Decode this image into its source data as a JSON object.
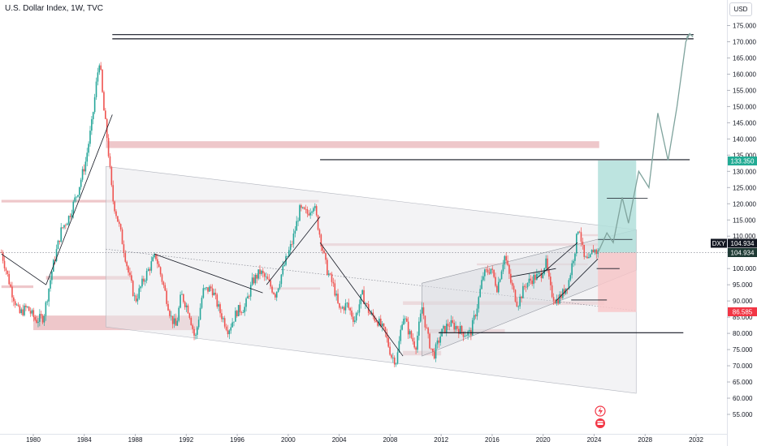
{
  "header": {
    "title": "U.S. Dollar Index, 1W, TVC"
  },
  "price_axis": {
    "currency": "USD",
    "ticks": [
      "175.000",
      "170.000",
      "165.000",
      "160.000",
      "155.000",
      "150.000",
      "145.000",
      "140.000",
      "135.000",
      "130.000",
      "125.000",
      "120.000",
      "115.000",
      "110.000",
      "105.000",
      "100.000",
      "95.000",
      "90.000",
      "85.000",
      "80.000",
      "75.000",
      "70.000",
      "65.000",
      "60.000",
      "55.000"
    ]
  },
  "labels": {
    "target": "133.350",
    "ticker": "DXY",
    "last": "104.934",
    "last2": "104.934",
    "stop": "86.585"
  },
  "colors": {
    "up": "#26a69a",
    "down": "#ef5350",
    "zone": "#e8b4b8",
    "channel": "#cfd1d6",
    "target_fill": "#b2dfdb",
    "stop_fill": "#f8c7c9"
  },
  "chart_data": {
    "type": "line",
    "title": "U.S. Dollar Index, 1W, TVC",
    "xlabel": "",
    "ylabel": "",
    "x_ticks": [
      "1980",
      "1984",
      "1988",
      "1992",
      "1996",
      "2000",
      "2004",
      "2008",
      "2012",
      "2016",
      "2020",
      "2024",
      "2028",
      "2032"
    ],
    "xlim": [
      1977.5,
      2035
    ],
    "ylim": [
      51,
      178
    ],
    "series": [
      {
        "values": [
          [
            1977.5,
            105
          ],
          [
            1978.3,
            93
          ],
          [
            1978.9,
            86
          ],
          [
            1979.5,
            88
          ],
          [
            1980.2,
            84
          ],
          [
            1980.8,
            85
          ],
          [
            1981.5,
            100
          ],
          [
            1982.2,
            112
          ],
          [
            1982.8,
            116
          ],
          [
            1983.5,
            124
          ],
          [
            1984.1,
            133
          ],
          [
            1984.6,
            145
          ],
          [
            1985.0,
            159
          ],
          [
            1985.2,
            164.7
          ],
          [
            1985.5,
            150
          ],
          [
            1985.8,
            140
          ],
          [
            1986.2,
            122
          ],
          [
            1986.8,
            112
          ],
          [
            1987.5,
            98
          ],
          [
            1988.0,
            90
          ],
          [
            1988.6,
            96
          ],
          [
            1989.2,
            101
          ],
          [
            1989.6,
            104
          ],
          [
            1990.2,
            95
          ],
          [
            1990.8,
            85
          ],
          [
            1991.2,
            82
          ],
          [
            1991.6,
            92
          ],
          [
            1992.2,
            87
          ],
          [
            1992.7,
            78
          ],
          [
            1993.3,
            93
          ],
          [
            1994.0,
            94
          ],
          [
            1994.6,
            87
          ],
          [
            1995.3,
            81
          ],
          [
            1996.0,
            87
          ],
          [
            1996.6,
            88
          ],
          [
            1997.2,
            96
          ],
          [
            1997.8,
            99
          ],
          [
            1998.4,
            96
          ],
          [
            1999.0,
            92
          ],
          [
            1999.6,
            100
          ],
          [
            2000.3,
            108
          ],
          [
            2000.9,
            118
          ],
          [
            2001.5,
            117
          ],
          [
            2002.0,
            120
          ],
          [
            2002.5,
            110
          ],
          [
            2003.0,
            100
          ],
          [
            2003.6,
            94
          ],
          [
            2004.0,
            87
          ],
          [
            2004.6,
            89
          ],
          [
            2005.2,
            84
          ],
          [
            2005.8,
            92
          ],
          [
            2006.4,
            86
          ],
          [
            2007.0,
            84
          ],
          [
            2007.6,
            80
          ],
          [
            2008.1,
            73
          ],
          [
            2008.5,
            71.3
          ],
          [
            2009.0,
            86
          ],
          [
            2009.5,
            80
          ],
          [
            2010.0,
            76
          ],
          [
            2010.5,
            88
          ],
          [
            2011.0,
            78
          ],
          [
            2011.4,
            73
          ],
          [
            2012.0,
            80
          ],
          [
            2012.6,
            83
          ],
          [
            2013.2,
            82
          ],
          [
            2013.8,
            80
          ],
          [
            2014.3,
            80
          ],
          [
            2014.8,
            88
          ],
          [
            2015.3,
            98
          ],
          [
            2015.9,
            100
          ],
          [
            2016.4,
            94
          ],
          [
            2016.9,
            103
          ],
          [
            2017.0,
            104
          ],
          [
            2017.5,
            95
          ],
          [
            2018.0,
            89
          ],
          [
            2018.6,
            95
          ],
          [
            2019.2,
            97
          ],
          [
            2019.8,
            98
          ],
          [
            2020.2,
            102
          ],
          [
            2020.6,
            93
          ],
          [
            2021.0,
            90
          ],
          [
            2021.5,
            92
          ],
          [
            2022.0,
            96
          ],
          [
            2022.5,
            106
          ],
          [
            2022.8,
            114
          ],
          [
            2023.2,
            103
          ],
          [
            2023.6,
            102
          ],
          [
            2023.9,
            106
          ],
          [
            2024.3,
            104.934
          ]
        ]
      }
    ],
    "projection": [
      [
        2024.3,
        104.934
      ],
      [
        2025.0,
        111
      ],
      [
        2025.5,
        108
      ],
      [
        2026.2,
        122
      ],
      [
        2026.7,
        114
      ],
      [
        2027.5,
        130
      ],
      [
        2028.3,
        125
      ],
      [
        2029.0,
        148
      ],
      [
        2029.8,
        133.35
      ],
      [
        2030.5,
        150
      ],
      [
        2031.2,
        170
      ],
      [
        2031.5,
        172.5
      ]
    ],
    "grid": false,
    "legend": "none"
  }
}
